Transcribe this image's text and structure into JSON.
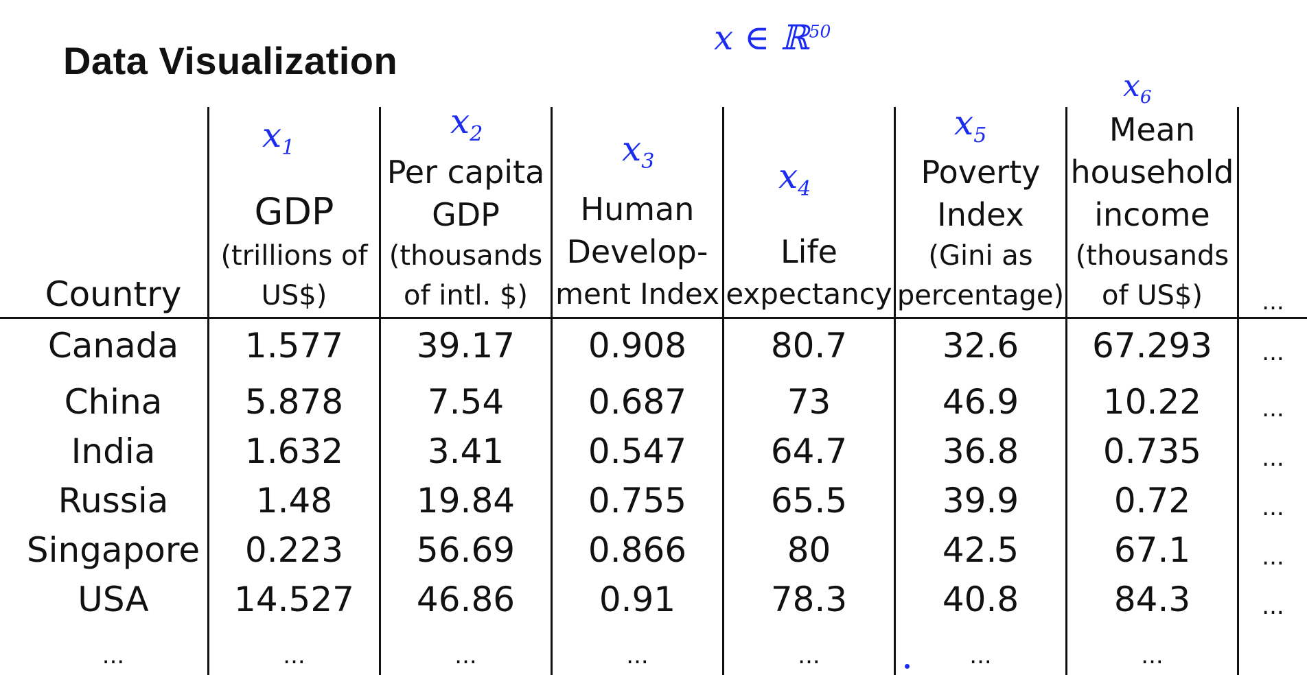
{
  "title": "Data Visualization",
  "annotations": {
    "set_note": "x ∈ ℝ",
    "set_note_exp": "50",
    "x_letter": "x",
    "col_subscripts": [
      "1",
      "2",
      "3",
      "4",
      "5",
      "6"
    ]
  },
  "table": {
    "headers": {
      "country": "Country",
      "gdp": {
        "main": "GDP",
        "sub1": "(trillions of",
        "sub2": "US$)"
      },
      "per_capita": {
        "l1": "Per capita",
        "l2": "GDP",
        "sub1": "(thousands",
        "sub2": "of intl. $)"
      },
      "hdi": {
        "l1": "Human",
        "l2": "Develop-",
        "l3": "ment Index"
      },
      "life": {
        "l1": "Life",
        "l2": "expectancy"
      },
      "poverty": {
        "l1": "Poverty",
        "l2": "Index",
        "sub1": "(Gini as",
        "sub2": "percentage)"
      },
      "income": {
        "l1": "Mean",
        "l2": "household",
        "l3": "income",
        "sub1": "(thousands",
        "sub2": "of US$)"
      },
      "more": "..."
    },
    "rows": [
      [
        "Canada",
        "1.577",
        "39.17",
        "0.908",
        "80.7",
        "32.6",
        "67.293",
        "..."
      ],
      [
        "China",
        "5.878",
        "7.54",
        "0.687",
        "73",
        "46.9",
        "10.22",
        "..."
      ],
      [
        "India",
        "1.632",
        "3.41",
        "0.547",
        "64.7",
        "36.8",
        "0.735",
        "..."
      ],
      [
        "Russia",
        "1.48",
        "19.84",
        "0.755",
        "65.5",
        "39.9",
        "0.72",
        "..."
      ],
      [
        "Singapore",
        "0.223",
        "56.69",
        "0.866",
        "80",
        "42.5",
        "67.1",
        "..."
      ],
      [
        "USA",
        "14.527",
        "46.86",
        "0.91",
        "78.3",
        "40.8",
        "84.3",
        "..."
      ],
      [
        "...",
        "...",
        "...",
        "...",
        "...",
        "...",
        "...",
        ""
      ]
    ]
  }
}
